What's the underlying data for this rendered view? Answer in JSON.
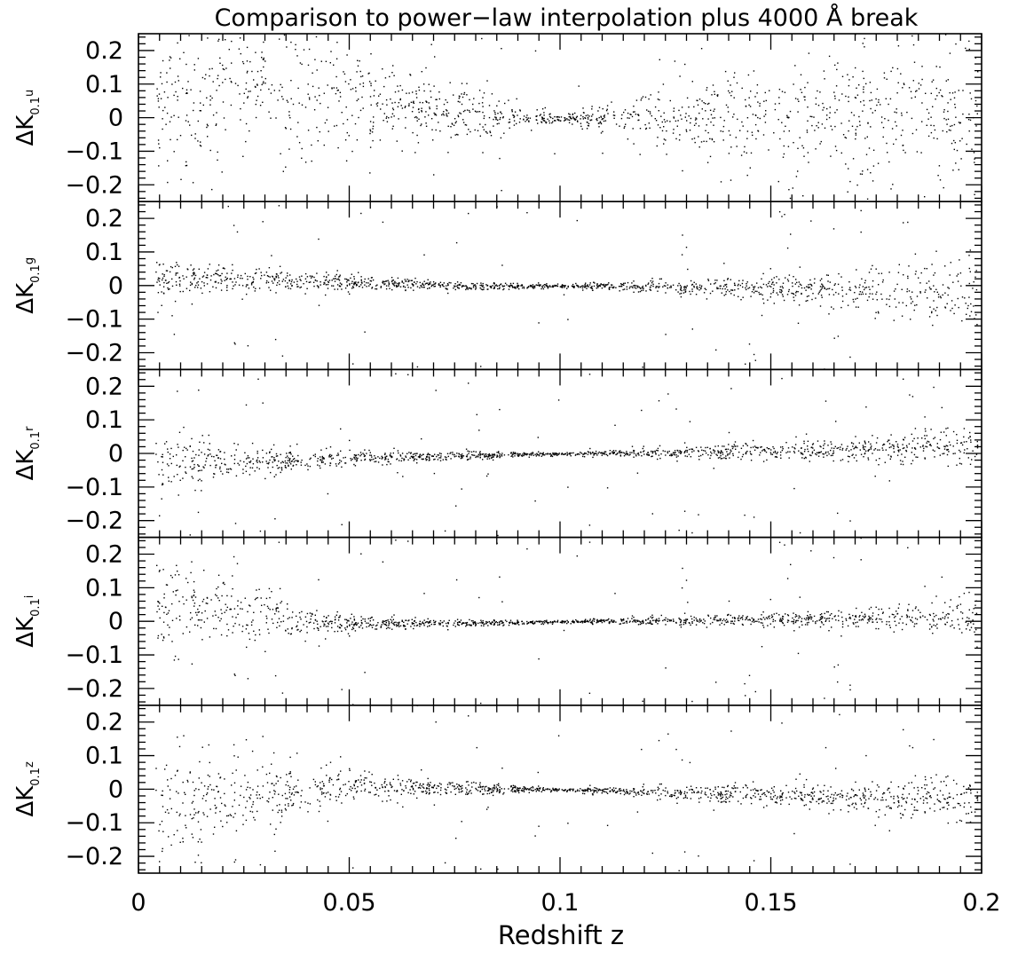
{
  "chart_data": {
    "type": "scatter",
    "title": "Comparison to power−law interpolation plus 4000 Å break",
    "xlabel": "Redshift z",
    "xlim": [
      0,
      0.2
    ],
    "xticks": [
      0,
      0.05,
      0.1,
      0.15,
      0.2
    ],
    "xtick_labels": [
      "0",
      "0.05",
      "0.1",
      "0.15",
      "0.2"
    ],
    "ylim": [
      -0.25,
      0.25
    ],
    "yticks": [
      -0.2,
      -0.1,
      0,
      0.1,
      0.2
    ],
    "ytick_labels": [
      "−0.2",
      "−0.1",
      "0",
      "0.1",
      "0.2"
    ],
    "grid": false,
    "legend": "none",
    "panels": [
      {
        "ylabel_main": "ΔK",
        "ylabel_sub": "0.1",
        "ylabel_band": "u",
        "approx_scatter": [
          {
            "z": 0.01,
            "sigma": 0.12,
            "center": 0.06
          },
          {
            "z": 0.03,
            "sigma": 0.1,
            "center": 0.08
          },
          {
            "z": 0.05,
            "sigma": 0.08,
            "center": 0.05
          },
          {
            "z": 0.07,
            "sigma": 0.05,
            "center": 0.02
          },
          {
            "z": 0.09,
            "sigma": 0.02,
            "center": 0.0
          },
          {
            "z": 0.1,
            "sigma": 0.003,
            "center": 0.0
          },
          {
            "z": 0.12,
            "sigma": 0.04,
            "center": 0.0
          },
          {
            "z": 0.14,
            "sigma": 0.07,
            "center": 0.0
          },
          {
            "z": 0.17,
            "sigma": 0.09,
            "center": 0.0
          },
          {
            "z": 0.2,
            "sigma": 0.11,
            "center": 0.0
          }
        ]
      },
      {
        "ylabel_main": "ΔK",
        "ylabel_sub": "0.1",
        "ylabel_band": "g",
        "approx_scatter": [
          {
            "z": 0.01,
            "sigma": 0.03,
            "center": 0.02
          },
          {
            "z": 0.03,
            "sigma": 0.018,
            "center": 0.02
          },
          {
            "z": 0.05,
            "sigma": 0.012,
            "center": 0.01
          },
          {
            "z": 0.075,
            "sigma": 0.006,
            "center": 0.0
          },
          {
            "z": 0.1,
            "sigma": 0.003,
            "center": 0.0
          },
          {
            "z": 0.13,
            "sigma": 0.012,
            "center": -0.005
          },
          {
            "z": 0.16,
            "sigma": 0.025,
            "center": -0.01
          },
          {
            "z": 0.19,
            "sigma": 0.05,
            "center": -0.02
          },
          {
            "z": 0.2,
            "sigma": 0.06,
            "center": -0.02
          }
        ]
      },
      {
        "ylabel_main": "ΔK",
        "ylabel_sub": "0.1",
        "ylabel_band": "r",
        "approx_scatter": [
          {
            "z": 0.01,
            "sigma": 0.04,
            "center": -0.03
          },
          {
            "z": 0.03,
            "sigma": 0.02,
            "center": -0.02
          },
          {
            "z": 0.06,
            "sigma": 0.01,
            "center": -0.01
          },
          {
            "z": 0.1,
            "sigma": 0.002,
            "center": 0.0
          },
          {
            "z": 0.13,
            "sigma": 0.01,
            "center": 0.005
          },
          {
            "z": 0.16,
            "sigma": 0.015,
            "center": 0.01
          },
          {
            "z": 0.19,
            "sigma": 0.025,
            "center": 0.02
          },
          {
            "z": 0.2,
            "sigma": 0.03,
            "center": 0.02
          }
        ]
      },
      {
        "ylabel_main": "ΔK",
        "ylabel_sub": "0.1",
        "ylabel_band": "i",
        "approx_scatter": [
          {
            "z": 0.01,
            "sigma": 0.07,
            "center": 0.05
          },
          {
            "z": 0.025,
            "sigma": 0.05,
            "center": 0.03
          },
          {
            "z": 0.045,
            "sigma": 0.015,
            "center": -0.005
          },
          {
            "z": 0.07,
            "sigma": 0.006,
            "center": -0.005
          },
          {
            "z": 0.1,
            "sigma": 0.002,
            "center": 0.0
          },
          {
            "z": 0.13,
            "sigma": 0.008,
            "center": 0.003
          },
          {
            "z": 0.16,
            "sigma": 0.012,
            "center": 0.008
          },
          {
            "z": 0.19,
            "sigma": 0.025,
            "center": 0.015
          },
          {
            "z": 0.2,
            "sigma": 0.04,
            "center": 0.02
          }
        ]
      },
      {
        "ylabel_main": "ΔK",
        "ylabel_sub": "0.1",
        "ylabel_band": "z",
        "approx_scatter": [
          {
            "z": 0.01,
            "sigma": 0.08,
            "center": -0.06
          },
          {
            "z": 0.025,
            "sigma": 0.06,
            "center": -0.02
          },
          {
            "z": 0.045,
            "sigma": 0.03,
            "center": 0.01
          },
          {
            "z": 0.07,
            "sigma": 0.012,
            "center": 0.005
          },
          {
            "z": 0.1,
            "sigma": 0.002,
            "center": 0.0
          },
          {
            "z": 0.13,
            "sigma": 0.012,
            "center": -0.01
          },
          {
            "z": 0.16,
            "sigma": 0.018,
            "center": -0.02
          },
          {
            "z": 0.19,
            "sigma": 0.03,
            "center": -0.03
          },
          {
            "z": 0.2,
            "sigma": 0.04,
            "center": -0.03
          }
        ]
      }
    ]
  }
}
